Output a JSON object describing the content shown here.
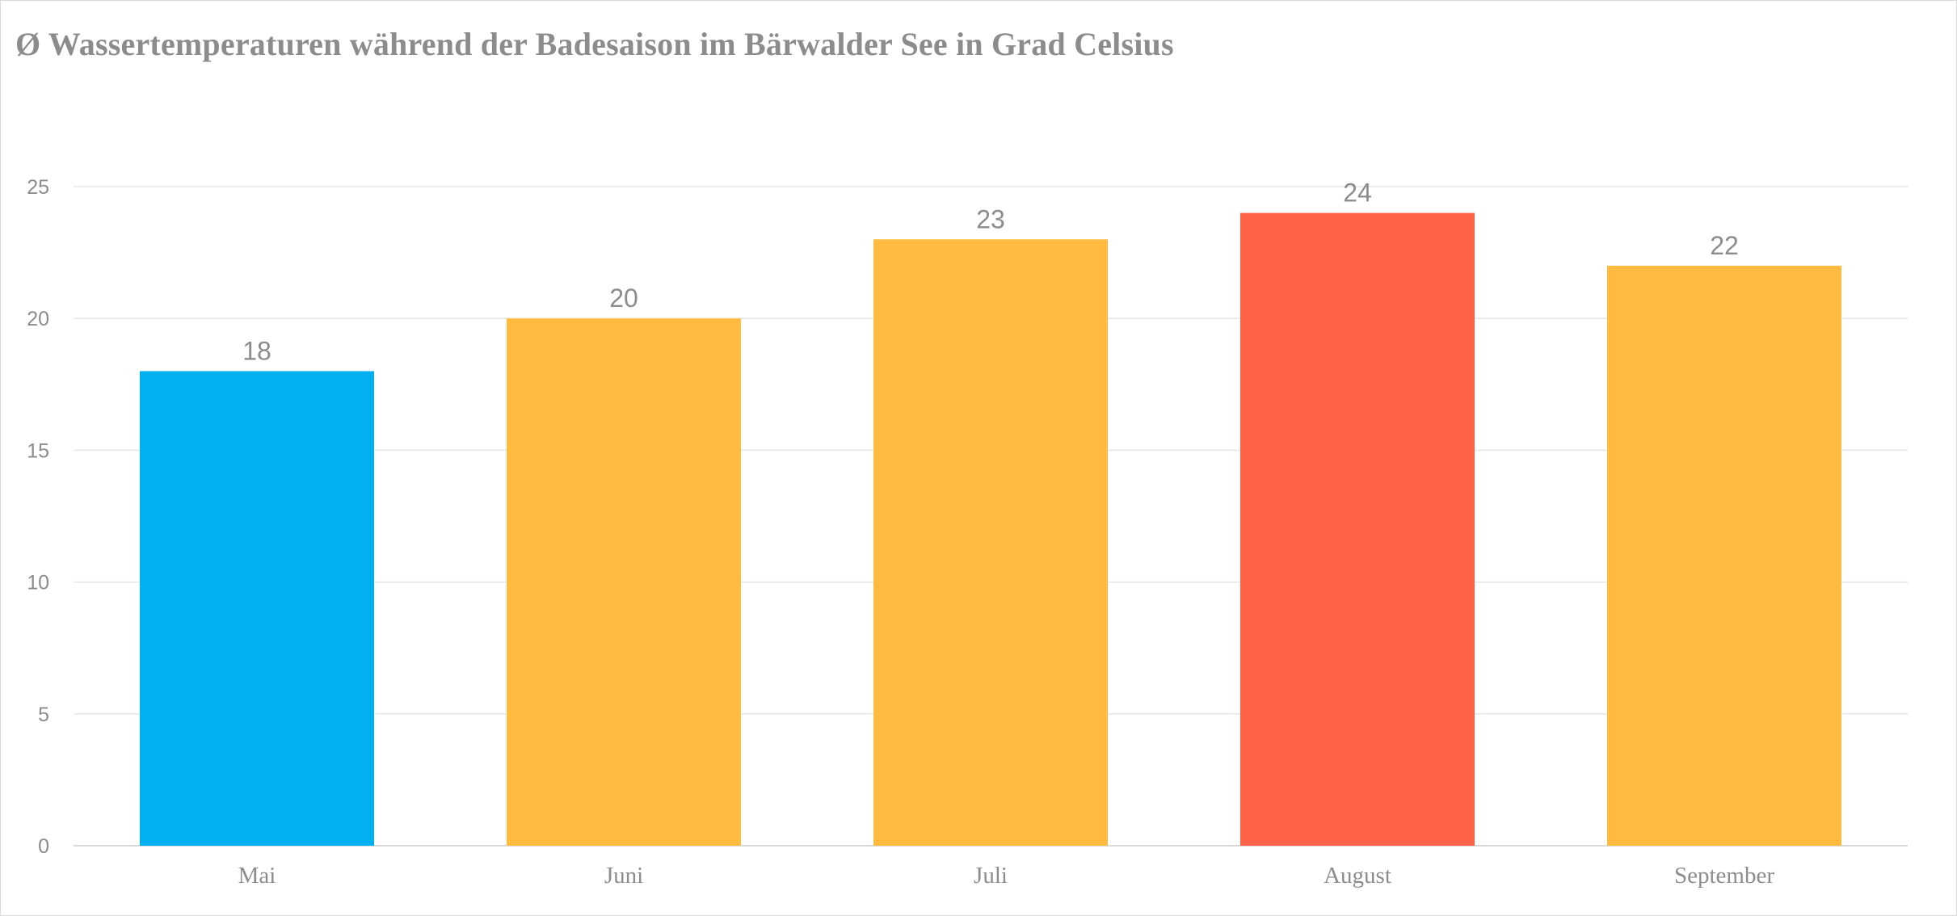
{
  "chart_data": {
    "type": "bar",
    "title": "Ø Wassertemperaturen während der Badesaison im Bärwalder See in Grad Celsius",
    "xlabel": "",
    "ylabel": "",
    "categories": [
      "Mai",
      "Juni",
      "Juli",
      "August",
      "September"
    ],
    "values": [
      18,
      20,
      23,
      24,
      22
    ],
    "bar_colors": [
      "#00B0F0",
      "#FFBB40",
      "#FFBB40",
      "#FF6347",
      "#FFBB40"
    ],
    "ylim": [
      0,
      25
    ],
    "yticks": [
      0,
      5,
      10,
      15,
      20,
      25
    ],
    "grid": true,
    "data_labels": true,
    "legend": "none"
  }
}
